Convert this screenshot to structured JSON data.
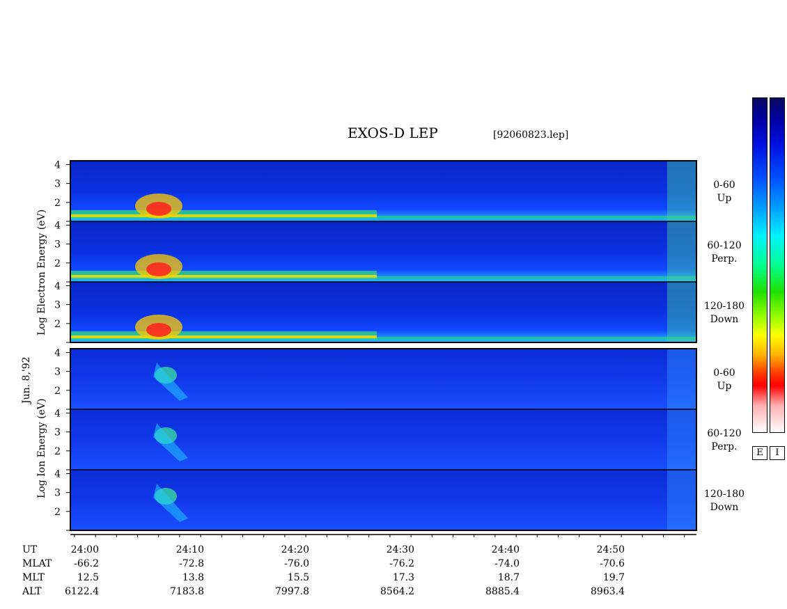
{
  "header": {
    "title": "EXOS-D LEP",
    "filename": "[92060823.lep]"
  },
  "axis_labels": {
    "electron": "Log  Electron  Energy (eV)",
    "ion": "Log   Ion   Energy (eV)",
    "date": "Jun. 8,'92"
  },
  "colorbars": [
    {
      "label": "E"
    },
    {
      "label": "I"
    }
  ],
  "chart_data": {
    "type": "heatmap",
    "x_ticks": [
      "24:00",
      "24:10",
      "24:20",
      "24:30",
      "24:40",
      "24:50"
    ],
    "y_ticks": [
      "1",
      "2",
      "3",
      "4"
    ],
    "ylim": [
      1,
      4.2
    ],
    "panels": [
      {
        "species": "electron",
        "pitch": "0-60",
        "dir": "Up"
      },
      {
        "species": "electron",
        "pitch": "60-120",
        "dir": "Perp."
      },
      {
        "species": "electron",
        "pitch": "120-180",
        "dir": "Down"
      },
      {
        "species": "ion",
        "pitch": "0-60",
        "dir": "Up"
      },
      {
        "species": "ion",
        "pitch": "60-120",
        "dir": "Perp."
      },
      {
        "species": "ion",
        "pitch": "120-180",
        "dir": "Down"
      }
    ],
    "ephemeris": {
      "labels": [
        "UT",
        "MLAT",
        "MLT",
        "ALT"
      ],
      "columns": [
        {
          "UT": "24:00",
          "MLAT": "-66.2",
          "MLT": "12.5",
          "ALT": "6122.4"
        },
        {
          "UT": "24:10",
          "MLAT": "-72.8",
          "MLT": "13.8",
          "ALT": "7183.8"
        },
        {
          "UT": "24:20",
          "MLAT": "-76.0",
          "MLT": "15.5",
          "ALT": "7997.8"
        },
        {
          "UT": "24:30",
          "MLAT": "-76.2",
          "MLT": "17.3",
          "ALT": "8564.2"
        },
        {
          "UT": "24:40",
          "MLAT": "-74.0",
          "MLT": "18.7",
          "ALT": "8885.4"
        },
        {
          "UT": "24:50",
          "MLAT": "-70.6",
          "MLT": "19.7",
          "ALT": "8963.4"
        }
      ]
    }
  }
}
